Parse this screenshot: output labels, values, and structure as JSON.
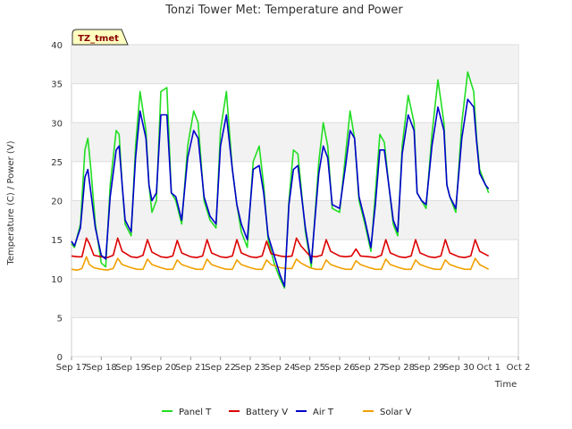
{
  "chart_data": {
    "type": "line",
    "title": "Tonzi Tower Met: Temperature and Power",
    "badge": "TZ_tmet",
    "xlabel": "Time",
    "ylabel": "Temperature (C) / Power (V)",
    "xlim": [
      0,
      15
    ],
    "ylim": [
      0,
      40
    ],
    "yticks": [
      0,
      5,
      10,
      15,
      20,
      25,
      30,
      35,
      40
    ],
    "xticks": [
      {
        "pos": 0,
        "label": "Sep 17"
      },
      {
        "pos": 1,
        "label": "Sep 18"
      },
      {
        "pos": 2,
        "label": "Sep 19"
      },
      {
        "pos": 3,
        "label": "Sep 20"
      },
      {
        "pos": 4,
        "label": "Sep 21"
      },
      {
        "pos": 5,
        "label": "Sep 22"
      },
      {
        "pos": 6,
        "label": "Sep 23"
      },
      {
        "pos": 7,
        "label": "Sep 24"
      },
      {
        "pos": 8,
        "label": "Sep 25"
      },
      {
        "pos": 9,
        "label": "Sep 26"
      },
      {
        "pos": 10,
        "label": "Sep 27"
      },
      {
        "pos": 11,
        "label": "Sep 28"
      },
      {
        "pos": 12,
        "label": "Sep 29"
      },
      {
        "pos": 13,
        "label": "Sep 30"
      },
      {
        "pos": 14,
        "label": "Oct 1"
      },
      {
        "pos": 15,
        "label": "Oct 2"
      }
    ],
    "series": [
      {
        "name": "Panel T",
        "color": "#22dd22",
        "x": [
          0.0,
          0.1,
          0.3,
          0.45,
          0.55,
          0.65,
          0.8,
          1.0,
          1.15,
          1.3,
          1.5,
          1.6,
          1.7,
          1.8,
          2.0,
          2.15,
          2.3,
          2.5,
          2.6,
          2.7,
          2.85,
          3.0,
          3.2,
          3.35,
          3.5,
          3.7,
          3.9,
          4.1,
          4.25,
          4.45,
          4.65,
          4.85,
          5.0,
          5.2,
          5.4,
          5.55,
          5.7,
          5.9,
          6.1,
          6.3,
          6.45,
          6.6,
          6.8,
          7.0,
          7.15,
          7.3,
          7.45,
          7.6,
          7.85,
          8.05,
          8.3,
          8.45,
          8.6,
          8.75,
          9.0,
          9.2,
          9.35,
          9.5,
          9.65,
          9.85,
          10.05,
          10.2,
          10.35,
          10.5,
          10.65,
          10.8,
          10.95,
          11.1,
          11.3,
          11.5,
          11.6,
          11.75,
          11.9,
          12.1,
          12.3,
          12.5,
          12.6,
          12.7,
          12.9,
          13.1,
          13.3,
          13.5,
          13.6,
          13.7,
          13.9,
          14.0
        ],
        "y": [
          14.5,
          14.0,
          17.0,
          26.5,
          28.0,
          24.0,
          17.0,
          12.0,
          11.5,
          22.0,
          29.0,
          28.5,
          22.0,
          17.0,
          15.5,
          27.0,
          34.0,
          29.0,
          22.0,
          18.5,
          20.0,
          34.0,
          34.5,
          21.0,
          20.0,
          17.0,
          27.0,
          31.5,
          30.0,
          20.0,
          17.5,
          16.5,
          29.0,
          34.0,
          24.0,
          19.5,
          16.0,
          14.0,
          25.0,
          27.0,
          22.0,
          15.0,
          12.0,
          10.0,
          8.8,
          20.0,
          26.5,
          26.0,
          16.0,
          11.5,
          25.0,
          30.0,
          27.0,
          19.0,
          18.5,
          26.0,
          31.5,
          28.0,
          20.0,
          17.0,
          13.5,
          21.0,
          28.5,
          27.5,
          22.0,
          17.0,
          15.5,
          27.0,
          33.5,
          30.0,
          21.0,
          20.0,
          19.0,
          28.5,
          35.5,
          30.0,
          22.0,
          20.5,
          18.5,
          30.0,
          36.5,
          34.0,
          28.0,
          24.0,
          22.0,
          21.0
        ]
      },
      {
        "name": "Air T",
        "color": "#0000cc",
        "x": [
          0.0,
          0.1,
          0.3,
          0.45,
          0.55,
          0.65,
          0.8,
          1.0,
          1.15,
          1.3,
          1.5,
          1.6,
          1.7,
          1.8,
          2.0,
          2.15,
          2.3,
          2.5,
          2.6,
          2.7,
          2.85,
          3.0,
          3.2,
          3.35,
          3.5,
          3.7,
          3.9,
          4.1,
          4.25,
          4.45,
          4.65,
          4.85,
          5.0,
          5.2,
          5.4,
          5.55,
          5.7,
          5.9,
          6.1,
          6.3,
          6.45,
          6.6,
          6.8,
          7.0,
          7.15,
          7.3,
          7.45,
          7.6,
          7.85,
          8.05,
          8.3,
          8.45,
          8.6,
          8.75,
          9.0,
          9.2,
          9.35,
          9.5,
          9.65,
          9.85,
          10.05,
          10.2,
          10.35,
          10.5,
          10.65,
          10.8,
          10.95,
          11.1,
          11.3,
          11.5,
          11.6,
          11.75,
          11.9,
          12.1,
          12.3,
          12.5,
          12.6,
          12.7,
          12.9,
          13.1,
          13.3,
          13.5,
          13.6,
          13.7,
          13.9,
          14.0
        ],
        "y": [
          14.8,
          14.2,
          16.5,
          23.0,
          24.0,
          21.0,
          16.5,
          13.0,
          12.5,
          20.5,
          26.5,
          27.0,
          22.0,
          17.5,
          16.0,
          25.5,
          31.5,
          28.0,
          22.0,
          20.0,
          21.0,
          31.0,
          31.0,
          21.0,
          20.5,
          17.5,
          25.5,
          29.0,
          28.0,
          20.5,
          18.0,
          17.0,
          27.0,
          31.0,
          24.0,
          19.5,
          17.0,
          15.0,
          24.0,
          24.5,
          21.0,
          15.5,
          13.0,
          10.5,
          9.0,
          19.5,
          24.0,
          24.5,
          16.5,
          12.0,
          23.5,
          27.0,
          25.5,
          19.5,
          19.0,
          24.5,
          29.0,
          28.0,
          20.5,
          17.5,
          14.0,
          19.5,
          26.5,
          26.5,
          22.0,
          17.5,
          16.0,
          26.0,
          31.0,
          29.0,
          21.0,
          20.0,
          19.5,
          27.0,
          32.0,
          29.0,
          22.0,
          20.5,
          19.0,
          28.0,
          33.0,
          32.0,
          27.5,
          23.5,
          22.0,
          21.5
        ]
      },
      {
        "name": "Battery V",
        "color": "#dd0000",
        "x": [
          0.0,
          0.2,
          0.35,
          0.5,
          0.6,
          0.75,
          1.0,
          1.2,
          1.4,
          1.55,
          1.7,
          2.0,
          2.2,
          2.4,
          2.55,
          2.7,
          3.0,
          3.2,
          3.4,
          3.55,
          3.7,
          4.0,
          4.2,
          4.4,
          4.55,
          4.7,
          5.0,
          5.2,
          5.4,
          5.55,
          5.7,
          6.0,
          6.2,
          6.4,
          6.55,
          6.7,
          7.0,
          7.2,
          7.4,
          7.55,
          7.7,
          8.0,
          8.2,
          8.4,
          8.55,
          8.7,
          9.0,
          9.2,
          9.4,
          9.55,
          9.7,
          10.0,
          10.2,
          10.4,
          10.55,
          10.7,
          11.0,
          11.2,
          11.4,
          11.55,
          11.7,
          12.0,
          12.2,
          12.4,
          12.55,
          12.7,
          13.0,
          13.2,
          13.4,
          13.55,
          13.7,
          14.0
        ],
        "y": [
          12.9,
          12.8,
          12.8,
          15.2,
          14.5,
          13.0,
          12.8,
          12.7,
          13.0,
          15.2,
          13.5,
          12.8,
          12.7,
          13.0,
          15.0,
          13.4,
          12.8,
          12.7,
          12.9,
          14.9,
          13.3,
          12.8,
          12.7,
          12.9,
          15.0,
          13.3,
          12.8,
          12.7,
          12.9,
          15.0,
          13.3,
          12.8,
          12.7,
          12.9,
          14.8,
          13.2,
          12.9,
          12.8,
          12.9,
          15.2,
          14.2,
          12.9,
          12.8,
          13.0,
          15.0,
          13.5,
          12.9,
          12.8,
          12.9,
          13.8,
          12.9,
          12.8,
          12.7,
          13.0,
          15.0,
          13.3,
          12.8,
          12.7,
          12.9,
          15.0,
          13.3,
          12.8,
          12.7,
          12.9,
          15.0,
          13.3,
          12.8,
          12.7,
          12.9,
          15.0,
          13.5,
          12.9
        ]
      },
      {
        "name": "Solar V",
        "color": "#f0a000",
        "x": [
          0.0,
          0.2,
          0.35,
          0.5,
          0.6,
          0.75,
          1.0,
          1.2,
          1.4,
          1.55,
          1.7,
          2.0,
          2.2,
          2.4,
          2.55,
          2.7,
          3.0,
          3.2,
          3.4,
          3.55,
          3.7,
          4.0,
          4.2,
          4.4,
          4.55,
          4.7,
          5.0,
          5.2,
          5.4,
          5.55,
          5.7,
          6.0,
          6.2,
          6.4,
          6.55,
          6.7,
          7.0,
          7.2,
          7.4,
          7.55,
          7.7,
          8.0,
          8.2,
          8.4,
          8.55,
          8.7,
          9.0,
          9.2,
          9.4,
          9.55,
          9.7,
          10.0,
          10.2,
          10.4,
          10.55,
          10.7,
          11.0,
          11.2,
          11.4,
          11.55,
          11.7,
          12.0,
          12.2,
          12.4,
          12.55,
          12.7,
          13.0,
          13.2,
          13.4,
          13.55,
          13.7,
          14.0
        ],
        "y": [
          11.2,
          11.1,
          11.3,
          12.8,
          11.8,
          11.4,
          11.2,
          11.1,
          11.3,
          12.6,
          11.8,
          11.4,
          11.2,
          11.2,
          12.5,
          11.8,
          11.4,
          11.2,
          11.2,
          12.4,
          11.8,
          11.4,
          11.2,
          11.2,
          12.5,
          11.8,
          11.4,
          11.2,
          11.2,
          12.4,
          11.8,
          11.4,
          11.2,
          11.2,
          12.4,
          11.8,
          11.4,
          11.3,
          11.3,
          12.5,
          12.0,
          11.4,
          11.2,
          11.2,
          12.4,
          11.8,
          11.4,
          11.2,
          11.2,
          12.3,
          11.8,
          11.4,
          11.2,
          11.2,
          12.5,
          11.8,
          11.4,
          11.2,
          11.2,
          12.4,
          11.8,
          11.4,
          11.2,
          11.2,
          12.4,
          11.8,
          11.4,
          11.2,
          11.2,
          12.6,
          11.8,
          11.2
        ]
      }
    ]
  }
}
